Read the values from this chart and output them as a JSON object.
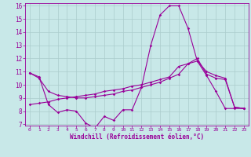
{
  "xlabel": "Windchill (Refroidissement éolien,°C)",
  "bg_color": "#c8e8e8",
  "line_color": "#990099",
  "grid_color": "#aacccc",
  "line1_x": [
    0,
    1,
    2,
    3,
    4,
    5,
    6,
    7,
    8,
    9,
    10,
    11,
    12,
    13,
    14,
    15,
    16,
    17,
    18,
    19,
    20,
    21,
    22,
    23
  ],
  "line1_y": [
    10.9,
    10.6,
    8.5,
    7.9,
    8.1,
    8.0,
    7.1,
    6.7,
    7.6,
    7.3,
    8.1,
    8.1,
    9.8,
    13.0,
    15.3,
    16.0,
    16.0,
    14.3,
    11.8,
    10.7,
    9.5,
    8.2,
    8.2,
    8.2
  ],
  "line2_x": [
    0,
    1,
    2,
    3,
    4,
    5,
    6,
    7,
    8,
    9,
    10,
    11,
    12,
    13,
    14,
    15,
    16,
    17,
    18,
    19,
    20,
    21,
    22,
    23
  ],
  "line2_y": [
    8.5,
    8.6,
    8.7,
    8.9,
    9.0,
    9.1,
    9.2,
    9.3,
    9.5,
    9.6,
    9.7,
    9.9,
    10.0,
    10.2,
    10.4,
    10.6,
    11.4,
    11.6,
    11.8,
    11.0,
    10.7,
    10.5,
    8.3,
    8.2
  ],
  "line3_x": [
    0,
    1,
    2,
    3,
    4,
    5,
    6,
    7,
    8,
    9,
    10,
    11,
    12,
    13,
    14,
    15,
    16,
    17,
    18,
    19,
    20,
    21,
    22,
    23
  ],
  "line3_y": [
    10.9,
    10.5,
    9.5,
    9.2,
    9.1,
    9.0,
    9.0,
    9.1,
    9.2,
    9.3,
    9.5,
    9.6,
    9.8,
    10.0,
    10.2,
    10.5,
    10.8,
    11.6,
    12.0,
    10.8,
    10.5,
    10.4,
    8.3,
    8.2
  ],
  "ylim": [
    7,
    16
  ],
  "xlim": [
    -0.5,
    23.5
  ],
  "yticks": [
    7,
    8,
    9,
    10,
    11,
    12,
    13,
    14,
    15,
    16
  ],
  "xticks": [
    0,
    1,
    2,
    3,
    4,
    5,
    6,
    7,
    8,
    9,
    10,
    11,
    12,
    13,
    14,
    15,
    16,
    17,
    18,
    19,
    20,
    21,
    22,
    23
  ]
}
